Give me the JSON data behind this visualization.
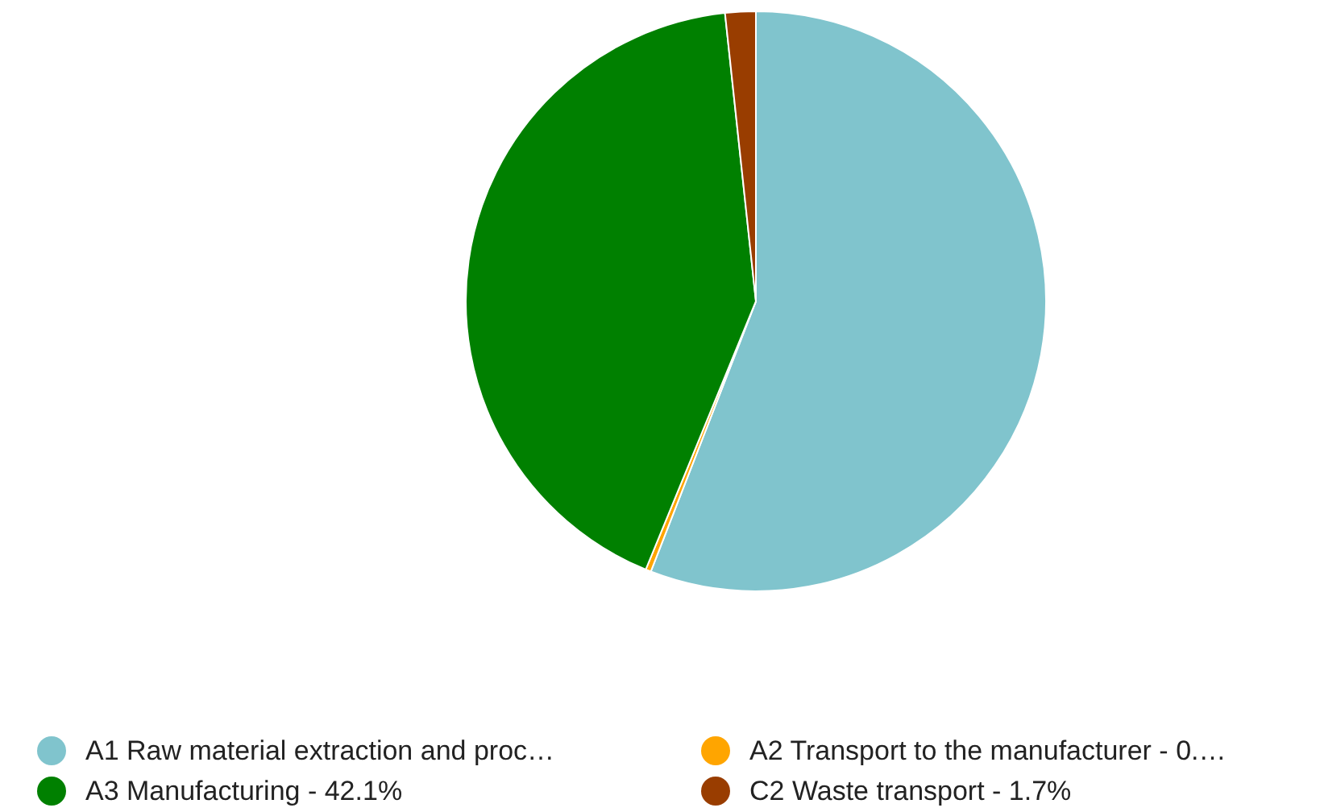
{
  "chart_data": {
    "type": "pie",
    "categories": [
      "A1 Raw material extraction and proc…",
      "A2 Transport to the manufacturer - 0.…",
      "A3 Manufacturing - 42.1%",
      "C2 Waste transport - 1.7%"
    ],
    "values": [
      55.9,
      0.3,
      42.1,
      1.7
    ],
    "colors": [
      "#80c4cd",
      "#ffa500",
      "#008000",
      "#993d00"
    ],
    "legend": "bottom"
  }
}
